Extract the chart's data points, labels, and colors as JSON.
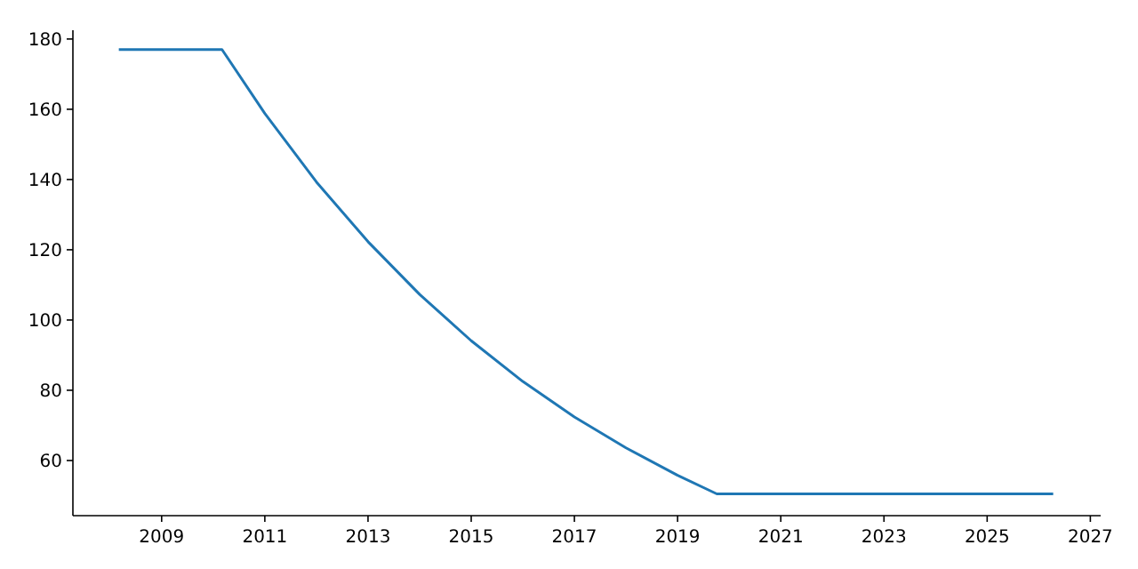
{
  "chart_data": {
    "type": "line",
    "x": [
      2008.17,
      2010.17,
      2011,
      2012,
      2013,
      2014,
      2015,
      2016,
      2017,
      2018,
      2019,
      2019.76,
      2026.28
    ],
    "series": [
      {
        "color": "#1f77b4",
        "values": [
          177,
          177,
          158.8,
          139.3,
          122.3,
          107.3,
          94.1,
          82.5,
          72.4,
          63.6,
          55.8,
          50.5,
          50.5
        ]
      }
    ],
    "xlim": [
      2007.28,
      2027.2
    ],
    "xticks": [
      2009,
      2011,
      2013,
      2015,
      2017,
      2019,
      2021,
      2023,
      2025,
      2027
    ],
    "ylim": [
      44.3,
      182.5
    ],
    "yticks": [
      60,
      80,
      100,
      120,
      140,
      160,
      180
    ],
    "grid": false
  }
}
